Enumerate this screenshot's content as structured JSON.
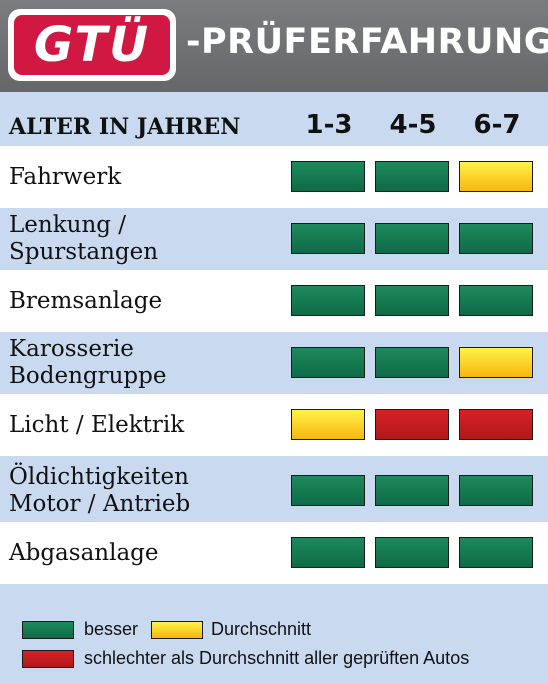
{
  "header": {
    "logo_text": "GTÜ",
    "title": "-PRÜFERFAHRUNG"
  },
  "table": {
    "label_header": "ALTER IN JAHREN",
    "columns": [
      "1-3",
      "4-5",
      "6-7"
    ],
    "rows": [
      {
        "label": "Fahrwerk",
        "ratings": [
          "besser",
          "besser",
          "durchschnitt"
        ]
      },
      {
        "label": "Lenkung /\nSpurstangen",
        "ratings": [
          "besser",
          "besser",
          "besser"
        ]
      },
      {
        "label": "Bremsanlage",
        "ratings": [
          "besser",
          "besser",
          "besser"
        ]
      },
      {
        "label": "Karosserie\nBodengruppe",
        "ratings": [
          "besser",
          "besser",
          "durchschnitt"
        ]
      },
      {
        "label": "Licht / Elektrik",
        "ratings": [
          "durchschnitt",
          "schlechter",
          "schlechter"
        ]
      },
      {
        "label": "Öldichtigkeiten\nMotor / Antrieb",
        "ratings": [
          "besser",
          "besser",
          "besser"
        ]
      },
      {
        "label": "Abgasanlage",
        "ratings": [
          "besser",
          "besser",
          "besser"
        ]
      }
    ]
  },
  "legend": {
    "besser": "besser",
    "durchschnitt": "Durchschnitt",
    "schlechter": "schlechter als Durchschnitt aller geprüften Autos"
  },
  "colors": {
    "besser": "#147a50",
    "durchschnitt": "#fbd52a",
    "schlechter": "#c41c1f",
    "background": "#c9daf0",
    "header": "#6e7073",
    "logo": "#d01843"
  }
}
